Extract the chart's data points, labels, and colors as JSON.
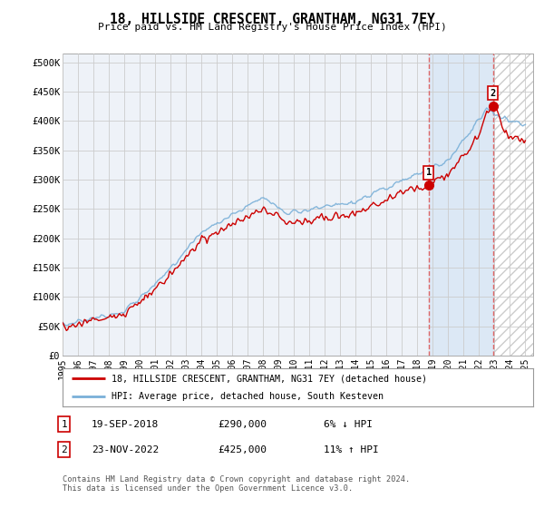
{
  "title": "18, HILLSIDE CRESCENT, GRANTHAM, NG31 7EY",
  "subtitle": "Price paid vs. HM Land Registry's House Price Index (HPI)",
  "ylabel_ticks": [
    "£0",
    "£50K",
    "£100K",
    "£150K",
    "£200K",
    "£250K",
    "£300K",
    "£350K",
    "£400K",
    "£450K",
    "£500K"
  ],
  "ytick_values": [
    0,
    50000,
    100000,
    150000,
    200000,
    250000,
    300000,
    350000,
    400000,
    450000,
    500000
  ],
  "ylim": [
    0,
    515000
  ],
  "xlim_start": 1995.0,
  "xlim_end": 2025.5,
  "sale1_date": 2018.72,
  "sale1_price": 290000,
  "sale1_label": "1",
  "sale2_date": 2022.9,
  "sale2_price": 425000,
  "sale2_label": "2",
  "shade_start": 2018.72,
  "shade_end": 2022.9,
  "hpi_color": "#7ab0d8",
  "price_color": "#cc0000",
  "vline_color": "#dd6666",
  "grid_color": "#cccccc",
  "background_color": "#ffffff",
  "plot_bg_color": "#eef2f8",
  "shade_color": "#dce8f5",
  "hatch_color": "#cccccc",
  "legend_line1": "18, HILLSIDE CRESCENT, GRANTHAM, NG31 7EY (detached house)",
  "legend_line2": "HPI: Average price, detached house, South Kesteven",
  "note1_label": "1",
  "note1_date": "19-SEP-2018",
  "note1_price": "£290,000",
  "note1_pct": "6% ↓ HPI",
  "note2_label": "2",
  "note2_date": "23-NOV-2022",
  "note2_price": "£425,000",
  "note2_pct": "11% ↑ HPI",
  "footer": "Contains HM Land Registry data © Crown copyright and database right 2024.\nThis data is licensed under the Open Government Licence v3.0.",
  "xtick_years": [
    1995,
    1996,
    1997,
    1998,
    1999,
    2000,
    2001,
    2002,
    2003,
    2004,
    2005,
    2006,
    2007,
    2008,
    2009,
    2010,
    2011,
    2012,
    2013,
    2014,
    2015,
    2016,
    2017,
    2018,
    2019,
    2020,
    2021,
    2022,
    2023,
    2024,
    2025
  ]
}
